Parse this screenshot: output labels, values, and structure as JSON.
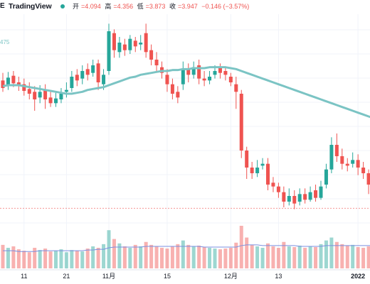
{
  "header": {
    "brand_prefix": "E",
    "brand": "TradingView",
    "open_label": "开",
    "open": "=4.094",
    "high_label": "高",
    "high": "=4.356",
    "low_label": "低",
    "low": "=3.873",
    "close_label": "收",
    "close": "=3.947",
    "change": "−0.146 (−3.57%)"
  },
  "indicator": {
    "ma_value": "475"
  },
  "colors": {
    "up": "#26a69a",
    "down": "#ef5350",
    "ma_line": "#7bc4c4",
    "volume_ma": "#7b8fe0",
    "text": "#131722",
    "grid": "#f0f3fa",
    "market_dot": "#26a69a"
  },
  "chart_data": {
    "type": "candlestick",
    "x_tick_labels": [
      "11",
      "21",
      "11月",
      "15",
      "12月",
      "13",
      "2022"
    ],
    "x_tick_index": [
      4,
      12,
      20,
      31,
      43,
      52,
      67
    ],
    "y_range": [
      3.2,
      5.6
    ],
    "grid": true,
    "legend": "none",
    "candles": [
      [
        4.9,
        4.82,
        4.98,
        4.78
      ],
      [
        4.85,
        4.93,
        4.99,
        4.8
      ],
      [
        4.95,
        4.87,
        5.0,
        4.83
      ],
      [
        4.88,
        4.84,
        4.94,
        4.79
      ],
      [
        4.86,
        4.79,
        4.92,
        4.74
      ],
      [
        4.81,
        4.76,
        4.88,
        4.7
      ],
      [
        4.78,
        4.7,
        4.84,
        4.58
      ],
      [
        4.72,
        4.78,
        4.85,
        4.66
      ],
      [
        4.8,
        4.7,
        4.86,
        4.6
      ],
      [
        4.72,
        4.66,
        4.78,
        4.62
      ],
      [
        4.66,
        4.71,
        4.77,
        4.62
      ],
      [
        4.7,
        4.76,
        4.82,
        4.66
      ],
      [
        4.78,
        4.8,
        4.88,
        4.72
      ],
      [
        4.82,
        4.94,
        5.0,
        4.78
      ],
      [
        4.96,
        4.9,
        5.02,
        4.84
      ],
      [
        4.92,
        5.0,
        5.06,
        4.86
      ],
      [
        5.02,
        4.96,
        5.08,
        4.9
      ],
      [
        4.98,
        5.06,
        5.12,
        4.94
      ],
      [
        5.08,
        4.88,
        5.12,
        4.8
      ],
      [
        4.86,
        4.96,
        5.02,
        4.8
      ],
      [
        5.0,
        5.42,
        5.5,
        4.96
      ],
      [
        5.4,
        5.22,
        5.44,
        5.14
      ],
      [
        5.2,
        5.3,
        5.36,
        5.14
      ],
      [
        5.28,
        5.22,
        5.34,
        5.16
      ],
      [
        5.22,
        5.34,
        5.38,
        5.18
      ],
      [
        5.32,
        5.26,
        5.36,
        5.2
      ],
      [
        5.28,
        5.3,
        5.38,
        5.22
      ],
      [
        5.4,
        5.2,
        5.5,
        5.14
      ],
      [
        5.22,
        5.12,
        5.28,
        5.06
      ],
      [
        5.12,
        5.06,
        5.2,
        5.0
      ],
      [
        5.04,
        4.98,
        5.1,
        4.92
      ],
      [
        4.96,
        4.86,
        5.02,
        4.78
      ],
      [
        4.86,
        4.76,
        4.92,
        4.7
      ],
      [
        4.78,
        4.72,
        4.84,
        4.66
      ],
      [
        4.86,
        5.02,
        5.1,
        4.8
      ],
      [
        5.02,
        4.96,
        5.08,
        4.88
      ],
      [
        4.96,
        5.04,
        5.1,
        4.92
      ],
      [
        5.06,
        4.92,
        5.12,
        4.86
      ],
      [
        4.92,
        4.9,
        5.0,
        4.84
      ],
      [
        4.9,
        4.94,
        5.0,
        4.86
      ],
      [
        4.96,
        5.0,
        5.06,
        4.92
      ],
      [
        5.04,
        4.98,
        5.08,
        4.92
      ],
      [
        5.0,
        4.96,
        5.04,
        4.9
      ],
      [
        4.94,
        4.88,
        4.98,
        4.84
      ],
      [
        4.86,
        4.78,
        4.94,
        4.6
      ],
      [
        4.76,
        4.16,
        4.8,
        4.08
      ],
      [
        4.16,
        3.98,
        4.2,
        3.86
      ],
      [
        3.98,
        3.92,
        4.04,
        3.86
      ],
      [
        3.92,
        3.98,
        4.06,
        3.88
      ],
      [
        4.0,
        4.02,
        4.08,
        3.96
      ],
      [
        4.02,
        3.8,
        4.08,
        3.74
      ],
      [
        3.82,
        3.78,
        3.88,
        3.72
      ],
      [
        3.78,
        3.72,
        3.82,
        3.66
      ],
      [
        3.72,
        3.62,
        3.78,
        3.56
      ],
      [
        3.62,
        3.68,
        3.76,
        3.58
      ],
      [
        3.68,
        3.6,
        3.74,
        3.54
      ],
      [
        3.62,
        3.7,
        3.76,
        3.58
      ],
      [
        3.7,
        3.64,
        3.76,
        3.6
      ],
      [
        3.64,
        3.72,
        3.78,
        3.62
      ],
      [
        3.74,
        3.66,
        3.8,
        3.62
      ],
      [
        3.66,
        3.78,
        3.84,
        3.64
      ],
      [
        3.8,
        3.96,
        4.02,
        3.76
      ],
      [
        3.96,
        4.22,
        4.3,
        3.92
      ],
      [
        4.22,
        4.1,
        4.34,
        4.04
      ],
      [
        4.1,
        4.02,
        4.18,
        3.96
      ],
      [
        4.02,
        4.0,
        4.08,
        3.94
      ],
      [
        4.02,
        4.06,
        4.14,
        3.98
      ],
      [
        4.06,
        3.98,
        4.12,
        3.9
      ],
      [
        3.98,
        3.92,
        4.04,
        3.86
      ],
      [
        3.92,
        3.8,
        3.96,
        3.7
      ],
      [
        3.8,
        3.74,
        3.86,
        3.66
      ]
    ],
    "ma": [
      4.84,
      4.85,
      4.85,
      4.85,
      4.84,
      4.83,
      4.82,
      4.81,
      4.8,
      4.79,
      4.78,
      4.77,
      4.76,
      4.76,
      4.77,
      4.78,
      4.8,
      4.81,
      4.82,
      4.83,
      4.85,
      4.87,
      4.89,
      4.91,
      4.93,
      4.94,
      4.96,
      4.97,
      4.98,
      4.99,
      5.0,
      5.0,
      5.01,
      5.01,
      5.02,
      5.02,
      5.03,
      5.03,
      5.03,
      5.04,
      5.04,
      5.04,
      5.04,
      5.03,
      5.02,
      5.0,
      4.98,
      4.96,
      4.94,
      4.92,
      4.9,
      4.88,
      4.86,
      4.84,
      4.82,
      4.8,
      4.78,
      4.76,
      4.74,
      4.72,
      4.7,
      4.68,
      4.66,
      4.64,
      4.62,
      4.6,
      4.58,
      4.56,
      4.54,
      4.52,
      4.5
    ],
    "volumes": [
      32,
      28,
      30,
      26,
      24,
      22,
      28,
      25,
      27,
      23,
      24,
      26,
      22,
      25,
      24,
      23,
      27,
      30,
      28,
      33,
      52,
      40,
      34,
      30,
      28,
      32,
      30,
      36,
      32,
      30,
      28,
      27,
      30,
      33,
      38,
      32,
      30,
      31,
      29,
      28,
      27,
      26,
      27,
      28,
      35,
      58,
      42,
      32,
      30,
      28,
      34,
      30,
      28,
      36,
      30,
      29,
      31,
      28,
      30,
      29,
      33,
      38,
      42,
      36,
      33,
      31,
      32,
      29,
      28,
      30,
      35
    ],
    "volume_ma": [
      24,
      24,
      24,
      23,
      23,
      23,
      23,
      24,
      24,
      24,
      24,
      24,
      24,
      24,
      24,
      24,
      25,
      25,
      26,
      26,
      28,
      29,
      29,
      29,
      29,
      29,
      29,
      30,
      30,
      30,
      30,
      30,
      30,
      30,
      30,
      30,
      30,
      30,
      29,
      29,
      29,
      29,
      29,
      29,
      29,
      31,
      32,
      32,
      32,
      31,
      31,
      31,
      31,
      31,
      31,
      31,
      30,
      30,
      30,
      30,
      30,
      31,
      31,
      31,
      31,
      31,
      31,
      31,
      31,
      31,
      31
    ],
    "reference_line": 3.55
  }
}
